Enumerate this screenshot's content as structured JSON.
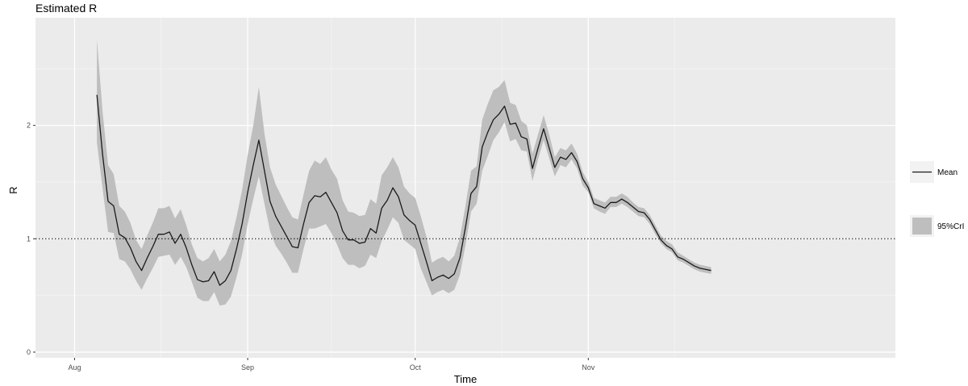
{
  "chart_data": {
    "type": "line",
    "title": "Estimated R",
    "xlabel": "Time",
    "ylabel": "R",
    "x_ticks": [
      "Aug",
      "Sep",
      "Oct",
      "Nov"
    ],
    "x_tick_dates": [
      "2020-08-01",
      "2020-09-01",
      "2020-10-01",
      "2020-11-01"
    ],
    "xlim": [
      "2020-07-25",
      "2020-12-26"
    ],
    "ylim": [
      -0.05,
      2.95
    ],
    "y_ticks": [
      0,
      1,
      2
    ],
    "reference_line": {
      "y": 1,
      "style": "dotted"
    },
    "grid": true,
    "legend_position": "right",
    "legend": [
      {
        "label": "Mean",
        "kind": "line"
      },
      {
        "label": "95%CrI",
        "kind": "ribbon"
      }
    ],
    "colors": {
      "mean": "#1a1a1a",
      "ribbon": "#bebebe",
      "panel": "#ebebeb",
      "grid": "#ffffff"
    },
    "series": [
      {
        "name": "Mean",
        "x": [
          "2020-08-05",
          "2020-08-06",
          "2020-08-07",
          "2020-08-08",
          "2020-08-09",
          "2020-08-10",
          "2020-08-11",
          "2020-08-12",
          "2020-08-13",
          "2020-08-14",
          "2020-08-15",
          "2020-08-16",
          "2020-08-17",
          "2020-08-18",
          "2020-08-19",
          "2020-08-20",
          "2020-08-21",
          "2020-08-22",
          "2020-08-23",
          "2020-08-24",
          "2020-08-25",
          "2020-08-26",
          "2020-08-27",
          "2020-08-28",
          "2020-08-29",
          "2020-08-30",
          "2020-08-31",
          "2020-09-01",
          "2020-09-02",
          "2020-09-03",
          "2020-09-04",
          "2020-09-05",
          "2020-09-06",
          "2020-09-07",
          "2020-09-08",
          "2020-09-09",
          "2020-09-10",
          "2020-09-11",
          "2020-09-12",
          "2020-09-13",
          "2020-09-14",
          "2020-09-15",
          "2020-09-16",
          "2020-09-17",
          "2020-09-18",
          "2020-09-19",
          "2020-09-20",
          "2020-09-21",
          "2020-09-22",
          "2020-09-23",
          "2020-09-24",
          "2020-09-25",
          "2020-09-26",
          "2020-09-27",
          "2020-09-28",
          "2020-09-29",
          "2020-09-30",
          "2020-10-01",
          "2020-10-02",
          "2020-10-03",
          "2020-10-04",
          "2020-10-05",
          "2020-10-06",
          "2020-10-07",
          "2020-10-08",
          "2020-10-09",
          "2020-10-10",
          "2020-10-11",
          "2020-10-12",
          "2020-10-13",
          "2020-10-14",
          "2020-10-15",
          "2020-10-16",
          "2020-10-17",
          "2020-10-18",
          "2020-10-19",
          "2020-10-20",
          "2020-10-21",
          "2020-10-22",
          "2020-10-23",
          "2020-10-24",
          "2020-10-25",
          "2020-10-26",
          "2020-10-27",
          "2020-10-28",
          "2020-10-29",
          "2020-10-30",
          "2020-10-31",
          "2020-11-01",
          "2020-11-02",
          "2020-11-03",
          "2020-11-04",
          "2020-11-05",
          "2020-11-06",
          "2020-11-07",
          "2020-11-08",
          "2020-11-09",
          "2020-11-10",
          "2020-11-11",
          "2020-11-12",
          "2020-11-13",
          "2020-11-14",
          "2020-11-15",
          "2020-11-16",
          "2020-11-17",
          "2020-11-18",
          "2020-11-19",
          "2020-11-20",
          "2020-11-21",
          "2020-11-22",
          "2020-11-23"
        ],
        "values": [
          2.27,
          1.75,
          1.33,
          1.29,
          1.04,
          1.01,
          0.92,
          0.8,
          0.72,
          0.83,
          0.93,
          1.04,
          1.04,
          1.06,
          0.96,
          1.04,
          0.92,
          0.77,
          0.64,
          0.62,
          0.63,
          0.71,
          0.59,
          0.63,
          0.72,
          0.91,
          1.13,
          1.41,
          1.65,
          1.87,
          1.6,
          1.33,
          1.2,
          1.11,
          1.02,
          0.93,
          0.92,
          1.13,
          1.32,
          1.38,
          1.37,
          1.41,
          1.32,
          1.23,
          1.07,
          0.99,
          0.99,
          0.96,
          0.97,
          1.09,
          1.05,
          1.27,
          1.34,
          1.45,
          1.37,
          1.21,
          1.16,
          1.12,
          0.96,
          0.8,
          0.63,
          0.66,
          0.68,
          0.65,
          0.69,
          0.83,
          1.1,
          1.4,
          1.46,
          1.81,
          1.94,
          2.05,
          2.1,
          2.17,
          2.01,
          2.02,
          1.9,
          1.88,
          1.62,
          1.8,
          1.97,
          1.8,
          1.63,
          1.72,
          1.7,
          1.76,
          1.68,
          1.53,
          1.45,
          1.31,
          1.29,
          1.27,
          1.32,
          1.32,
          1.35,
          1.32,
          1.28,
          1.24,
          1.23,
          1.17,
          1.08,
          0.99,
          0.94,
          0.91,
          0.84,
          0.82,
          0.79,
          0.76,
          0.74,
          0.73,
          0.72
        ]
      },
      {
        "name": "95%CrI",
        "x_ref": "Mean",
        "lower": [
          1.85,
          1.45,
          1.06,
          1.05,
          0.82,
          0.8,
          0.73,
          0.63,
          0.55,
          0.65,
          0.74,
          0.84,
          0.85,
          0.86,
          0.77,
          0.84,
          0.75,
          0.62,
          0.48,
          0.45,
          0.45,
          0.53,
          0.41,
          0.42,
          0.49,
          0.66,
          0.86,
          1.13,
          1.35,
          1.55,
          1.31,
          1.07,
          0.94,
          0.87,
          0.79,
          0.7,
          0.7,
          0.91,
          1.09,
          1.09,
          1.11,
          1.13,
          1.05,
          0.95,
          0.83,
          0.77,
          0.77,
          0.74,
          0.76,
          0.86,
          0.83,
          0.98,
          1.08,
          1.19,
          1.14,
          0.99,
          0.95,
          0.91,
          0.74,
          0.62,
          0.5,
          0.53,
          0.55,
          0.52,
          0.55,
          0.68,
          0.94,
          1.24,
          1.31,
          1.6,
          1.73,
          1.87,
          1.94,
          2.03,
          1.86,
          1.88,
          1.78,
          1.77,
          1.51,
          1.7,
          1.87,
          1.71,
          1.55,
          1.65,
          1.63,
          1.7,
          1.62,
          1.47,
          1.41,
          1.27,
          1.24,
          1.22,
          1.28,
          1.28,
          1.31,
          1.28,
          1.24,
          1.2,
          1.19,
          1.13,
          1.04,
          0.96,
          0.91,
          0.88,
          0.81,
          0.79,
          0.76,
          0.73,
          0.71,
          0.7,
          0.69
        ],
        "upper": [
          2.76,
          2.13,
          1.65,
          1.57,
          1.29,
          1.24,
          1.14,
          0.99,
          0.91,
          1.03,
          1.14,
          1.27,
          1.27,
          1.29,
          1.18,
          1.26,
          1.12,
          0.95,
          0.83,
          0.8,
          0.83,
          0.91,
          0.8,
          0.86,
          0.98,
          1.19,
          1.43,
          1.74,
          2.0,
          2.34,
          1.93,
          1.63,
          1.48,
          1.38,
          1.28,
          1.19,
          1.17,
          1.39,
          1.6,
          1.69,
          1.66,
          1.72,
          1.61,
          1.53,
          1.34,
          1.24,
          1.23,
          1.2,
          1.21,
          1.35,
          1.31,
          1.56,
          1.63,
          1.72,
          1.63,
          1.46,
          1.4,
          1.36,
          1.2,
          1.02,
          0.79,
          0.82,
          0.84,
          0.8,
          0.85,
          1.01,
          1.29,
          1.6,
          1.64,
          2.05,
          2.19,
          2.31,
          2.34,
          2.4,
          2.2,
          2.18,
          2.04,
          2.0,
          1.75,
          1.92,
          2.09,
          1.92,
          1.72,
          1.8,
          1.78,
          1.84,
          1.75,
          1.59,
          1.5,
          1.36,
          1.34,
          1.32,
          1.37,
          1.37,
          1.4,
          1.37,
          1.32,
          1.28,
          1.27,
          1.21,
          1.12,
          1.03,
          0.98,
          0.95,
          0.88,
          0.85,
          0.82,
          0.79,
          0.77,
          0.76,
          0.75
        ]
      }
    ]
  }
}
